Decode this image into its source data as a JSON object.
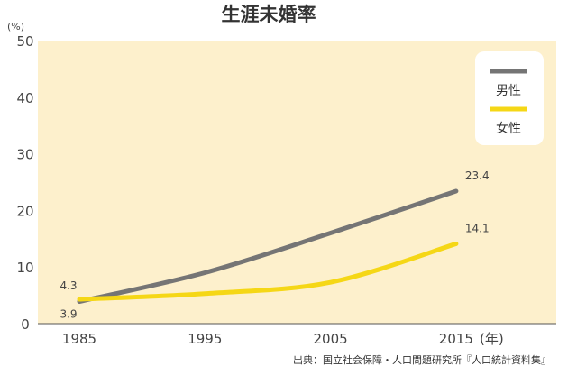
{
  "chart_data": {
    "type": "line",
    "title": "生涯未婚率",
    "y_unit": "(%)",
    "x_unit": "(年)",
    "x": [
      "1985",
      "1995",
      "2005",
      "2015"
    ],
    "ylim": [
      0,
      50
    ],
    "yticks": [
      "0",
      "10",
      "20",
      "30",
      "40",
      "50"
    ],
    "grid": false,
    "legend_position": "top-right",
    "series": [
      {
        "name": "男性",
        "color": "#757575",
        "values": [
          3.9,
          9.0,
          16.0,
          23.4
        ]
      },
      {
        "name": "女性",
        "color": "#f5d716",
        "values": [
          4.3,
          5.3,
          7.3,
          14.1
        ]
      }
    ],
    "data_labels": [
      {
        "series": 0,
        "index": 0,
        "text": "3.9"
      },
      {
        "series": 1,
        "index": 0,
        "text": "4.3"
      },
      {
        "series": 0,
        "index": 3,
        "text": "23.4"
      },
      {
        "series": 1,
        "index": 3,
        "text": "14.1"
      }
    ],
    "background_color": "#fdf0cc",
    "source": "出典：国立社会保障・人口問題研究所『人口統計資料集』"
  }
}
